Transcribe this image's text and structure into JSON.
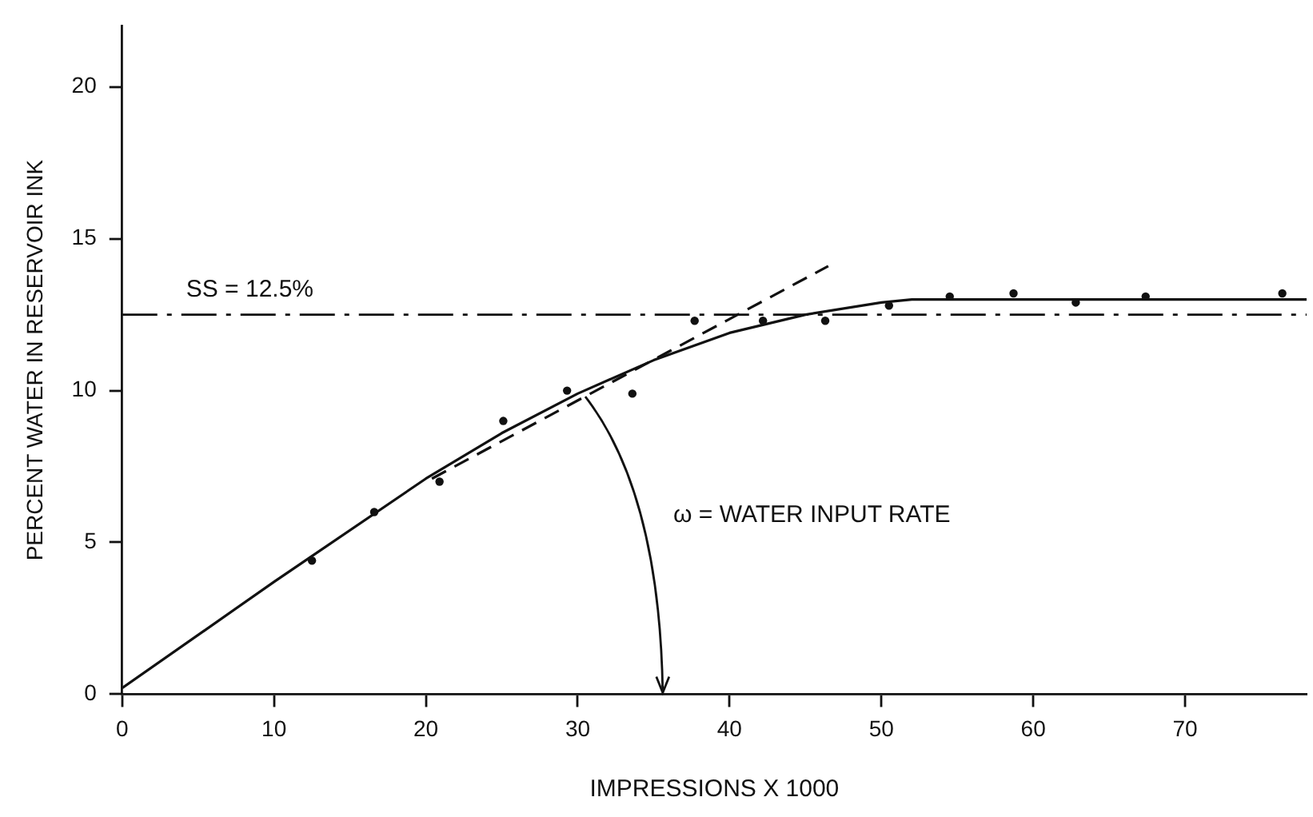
{
  "chart_data": {
    "type": "scatter",
    "xlabel": "IMPRESSIONS X 1000",
    "ylabel": "PERCENT WATER IN RESERVOIR INK",
    "xlim": [
      0,
      78
    ],
    "ylim": [
      0,
      22
    ],
    "xticks": [
      0,
      10,
      20,
      30,
      40,
      50,
      60,
      70
    ],
    "yticks": [
      0,
      5,
      10,
      15,
      20
    ],
    "grid": false,
    "legend": false,
    "series": [
      {
        "color": "#111111",
        "marker": "circle",
        "x": [
          12.5,
          16.6,
          20.9,
          25.1,
          29.3,
          33.6,
          37.7,
          42.2,
          46.3,
          50.5,
          54.5,
          58.7,
          62.8,
          67.4,
          76.4
        ],
        "values": [
          4.4,
          6.0,
          7.0,
          9.0,
          10.0,
          9.9,
          12.3,
          12.3,
          12.3,
          12.8,
          13.1,
          13.2,
          12.9,
          13.1,
          13.2
        ]
      },
      {
        "type": "line",
        "color": "#111111",
        "marker": "none",
        "line_style": "solid",
        "x": [
          0,
          10,
          20,
          25,
          30,
          35,
          40,
          45,
          50,
          52,
          78
        ],
        "values": [
          0.2,
          3.7,
          7.1,
          8.6,
          9.9,
          11.0,
          11.9,
          12.5,
          12.9,
          13.0,
          13.0
        ]
      },
      {
        "type": "line",
        "color": "#111111",
        "marker": "none",
        "line_style": "dashed",
        "x": [
          20.4,
          46.5
        ],
        "values": [
          7.1,
          14.1
        ]
      }
    ],
    "ref_lines": [
      {
        "axis": "y",
        "value": 12.5,
        "label": "SS = 12.5%",
        "line_style": "dashed",
        "color": "#111111"
      }
    ],
    "annotations": [
      "ω = WATER INPUT RATE"
    ]
  }
}
